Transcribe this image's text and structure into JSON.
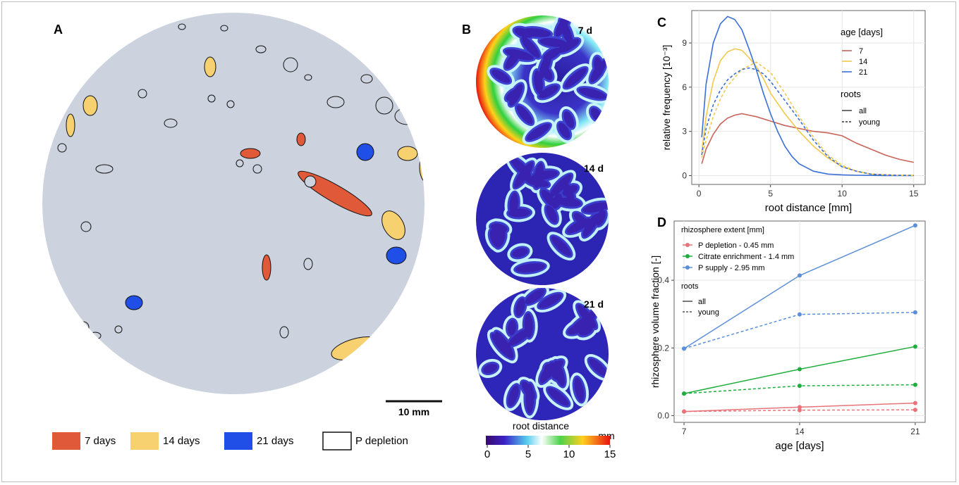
{
  "panels": {
    "A": {
      "label": "A",
      "scalebar_label": "10 mm",
      "legend": [
        {
          "label": "7 days",
          "color": "#e05a3a"
        },
        {
          "label": "14 days",
          "color": "#f7d170"
        },
        {
          "label": "21 days",
          "color": "#1f4fe6"
        },
        {
          "label": "P depletion",
          "color": "#ffffff"
        }
      ]
    },
    "B": {
      "label": "B",
      "maps": [
        {
          "label": "7 d"
        },
        {
          "label": "14 d"
        },
        {
          "label": "21 d"
        }
      ],
      "colorbar_title": "root distance",
      "colorbar_unit": "mm",
      "colorbar_ticks": [
        "0",
        "5",
        "10",
        "15"
      ]
    }
  },
  "chart_data": [
    {
      "panel": "C",
      "label": "C",
      "type": "line",
      "xlabel": "root distance [mm]",
      "ylabel": "relative frequency [10⁻³]",
      "xlim": [
        -0.5,
        15.8
      ],
      "ylim": [
        -0.6,
        11.2
      ],
      "xticks": [
        0,
        5,
        10,
        15
      ],
      "yticks": [
        0,
        3,
        6,
        9
      ],
      "legend_age_title": "age [days]",
      "legend_roots_title": "roots",
      "legend_placement": "top-right",
      "grid": true,
      "series": [
        {
          "name": "7",
          "roots": "all",
          "color": "#c8645a",
          "dash": false,
          "x": [
            0.2,
            0.5,
            1,
            1.5,
            2,
            2.5,
            3,
            3.5,
            4,
            5,
            6,
            7,
            8,
            9,
            10,
            11,
            12,
            13,
            14,
            15
          ],
          "y": [
            0.8,
            1.8,
            2.8,
            3.5,
            3.9,
            4.1,
            4.2,
            4.1,
            4.0,
            3.7,
            3.4,
            3.2,
            3.0,
            2.9,
            2.7,
            2.2,
            1.8,
            1.4,
            1.1,
            0.9
          ]
        },
        {
          "name": "14",
          "roots": "all",
          "color": "#f2c94c",
          "dash": false,
          "x": [
            0.2,
            0.5,
            1,
            1.5,
            2,
            2.5,
            3,
            3.5,
            4,
            4.5,
            5,
            6,
            7,
            8,
            9,
            10,
            11,
            12,
            13,
            14,
            15
          ],
          "y": [
            1.6,
            4.0,
            6.4,
            7.8,
            8.4,
            8.6,
            8.5,
            8.0,
            7.4,
            6.6,
            5.6,
            4.2,
            3.0,
            2.0,
            1.2,
            0.6,
            0.3,
            0.1,
            0.05,
            0.02,
            0.01
          ]
        },
        {
          "name": "21",
          "roots": "all",
          "color": "#3b6fd8",
          "dash": false,
          "x": [
            0.2,
            0.5,
            1,
            1.5,
            2,
            2.5,
            3,
            3.5,
            4,
            4.5,
            5,
            5.5,
            6,
            6.5,
            7,
            8,
            9,
            10,
            11,
            12,
            13,
            14,
            15
          ],
          "y": [
            2.6,
            6.2,
            9.0,
            10.3,
            10.8,
            10.6,
            9.9,
            8.6,
            7.2,
            5.6,
            4.2,
            3.0,
            2.0,
            1.3,
            0.8,
            0.3,
            0.1,
            0.05,
            0.02,
            0.01,
            0,
            0,
            0
          ]
        },
        {
          "name": "14",
          "roots": "young",
          "color": "#f2c94c",
          "dash": true,
          "x": [
            0.2,
            0.5,
            1,
            1.5,
            2,
            3,
            4,
            5,
            6,
            7,
            8,
            9,
            10,
            11,
            12,
            13,
            14,
            15
          ],
          "y": [
            1.2,
            2.4,
            4.0,
            5.2,
            6.1,
            7.2,
            7.7,
            7.0,
            5.6,
            4.0,
            2.6,
            1.4,
            0.7,
            0.3,
            0.1,
            0.05,
            0.02,
            0.01
          ]
        },
        {
          "name": "21",
          "roots": "young",
          "color": "#3b6fd8",
          "dash": true,
          "x": [
            0.2,
            0.5,
            1,
            1.5,
            2,
            2.5,
            3,
            3.5,
            4,
            4.5,
            5,
            6,
            7,
            8,
            9,
            10,
            11,
            12,
            13,
            14,
            15
          ],
          "y": [
            1.4,
            3.2,
            4.8,
            5.8,
            6.5,
            6.9,
            7.2,
            7.3,
            7.2,
            6.9,
            6.4,
            5.1,
            3.8,
            2.4,
            1.3,
            0.6,
            0.3,
            0.1,
            0.05,
            0.02,
            0.01
          ]
        }
      ],
      "legend_age_items": [
        {
          "label": "7",
          "color": "#c8645a"
        },
        {
          "label": "14",
          "color": "#f2c94c"
        },
        {
          "label": "21",
          "color": "#3b6fd8"
        }
      ],
      "legend_roots_items": [
        {
          "label": "all",
          "dash": false
        },
        {
          "label": "young",
          "dash": true
        }
      ]
    },
    {
      "panel": "D",
      "label": "D",
      "type": "line",
      "xlabel": "age [days]",
      "ylabel": "rhizosphere volume fraction [-]",
      "x": [
        7,
        14,
        21
      ],
      "xlim": [
        6.4,
        21.6
      ],
      "ylim": [
        -0.02,
        0.575
      ],
      "xticks": [
        7,
        14,
        21
      ],
      "yticks": [
        0.0,
        0.2,
        0.4
      ],
      "ytick_labels": [
        "0.0",
        "0.2",
        "0.4"
      ],
      "legend_extent_title": "rhizosphere extent [mm]",
      "legend_roots_title": "roots",
      "legend_placement": "top-left",
      "grid": true,
      "series": [
        {
          "name": "P depletion - 0.45 mm",
          "roots": "all",
          "color": "#e8737a",
          "dash": false,
          "values": [
            0.012,
            0.025,
            0.037
          ]
        },
        {
          "name": "P depletion - 0.45 mm",
          "roots": "young",
          "color": "#e8737a",
          "dash": true,
          "values": [
            0.012,
            0.016,
            0.017
          ]
        },
        {
          "name": "Citrate enrichment - 1.4 mm",
          "roots": "all",
          "color": "#1fae3e",
          "dash": false,
          "values": [
            0.065,
            0.137,
            0.204
          ]
        },
        {
          "name": "Citrate enrichment - 1.4 mm",
          "roots": "young",
          "color": "#1fae3e",
          "dash": true,
          "values": [
            0.065,
            0.088,
            0.091
          ]
        },
        {
          "name": "P supply - 2.95 mm",
          "roots": "all",
          "color": "#5b8fd9",
          "dash": false,
          "values": [
            0.198,
            0.414,
            0.562
          ]
        },
        {
          "name": "P supply - 2.95 mm",
          "roots": "young",
          "color": "#5b8fd9",
          "dash": true,
          "values": [
            0.198,
            0.299,
            0.305
          ]
        }
      ],
      "legend_extent_items": [
        {
          "label": "P depletion - 0.45 mm",
          "color": "#e8737a"
        },
        {
          "label": "Citrate enrichment - 1.4 mm",
          "color": "#1fae3e"
        },
        {
          "label": "P supply - 2.95 mm",
          "color": "#5b8fd9"
        }
      ],
      "legend_roots_items": [
        {
          "label": "all",
          "dash": false
        },
        {
          "label": "young",
          "dash": true
        }
      ]
    }
  ]
}
